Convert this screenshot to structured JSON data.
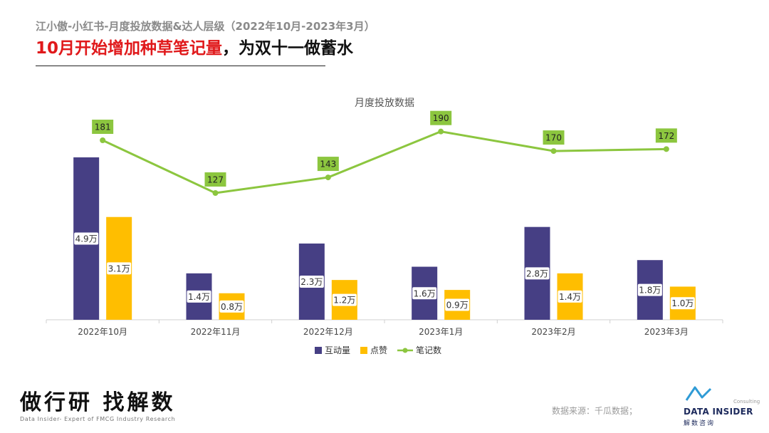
{
  "header": {
    "subtitle": "江小傲-小红书-月度投放数据&达人层级（2022年10月-2023年3月）",
    "headline_red": "10月开始增加种草笔记量",
    "headline_rest": "，为双十一做蓄水"
  },
  "chart_data": {
    "type": "bar",
    "title": "月度投放数据",
    "categories": [
      "2022年10月",
      "2022年11月",
      "2022年12月",
      "2023年1月",
      "2023年2月",
      "2023年3月"
    ],
    "bar_max": 5.5,
    "series": [
      {
        "name": "互动量",
        "kind": "bar",
        "color": "#463f84",
        "unit": "万",
        "values": [
          4.9,
          1.4,
          2.3,
          1.6,
          2.8,
          1.8
        ],
        "labels": [
          "4.9万",
          "1.4万",
          "2.3万",
          "1.6万",
          "2.8万",
          "1.8万"
        ]
      },
      {
        "name": "点赞",
        "kind": "bar",
        "color": "#ffbe00",
        "unit": "万",
        "values": [
          3.1,
          0.8,
          1.2,
          0.9,
          1.4,
          1.0
        ],
        "labels": [
          "3.1万",
          "0.8万",
          "1.2万",
          "0.9万",
          "1.4万",
          "1.0万"
        ]
      },
      {
        "name": "笔记数",
        "kind": "line",
        "color": "#8cc63f",
        "values": [
          181,
          127,
          143,
          190,
          170,
          172
        ],
        "labels": [
          "181",
          "127",
          "143",
          "190",
          "170",
          "172"
        ]
      }
    ],
    "legend_position": "bottom"
  },
  "footer": {
    "slogan": "做行研 找解数",
    "tagline": "Data Insider- Expert of FMCG Industry Research",
    "source": "数据来源：千瓜数据；"
  },
  "logo": {
    "consulting": "Consulting",
    "name": "DATA INSIDER",
    "cn": "解数咨询",
    "colors": [
      "#2f9bd6",
      "#1d2a5c",
      "#a7c93a"
    ]
  }
}
